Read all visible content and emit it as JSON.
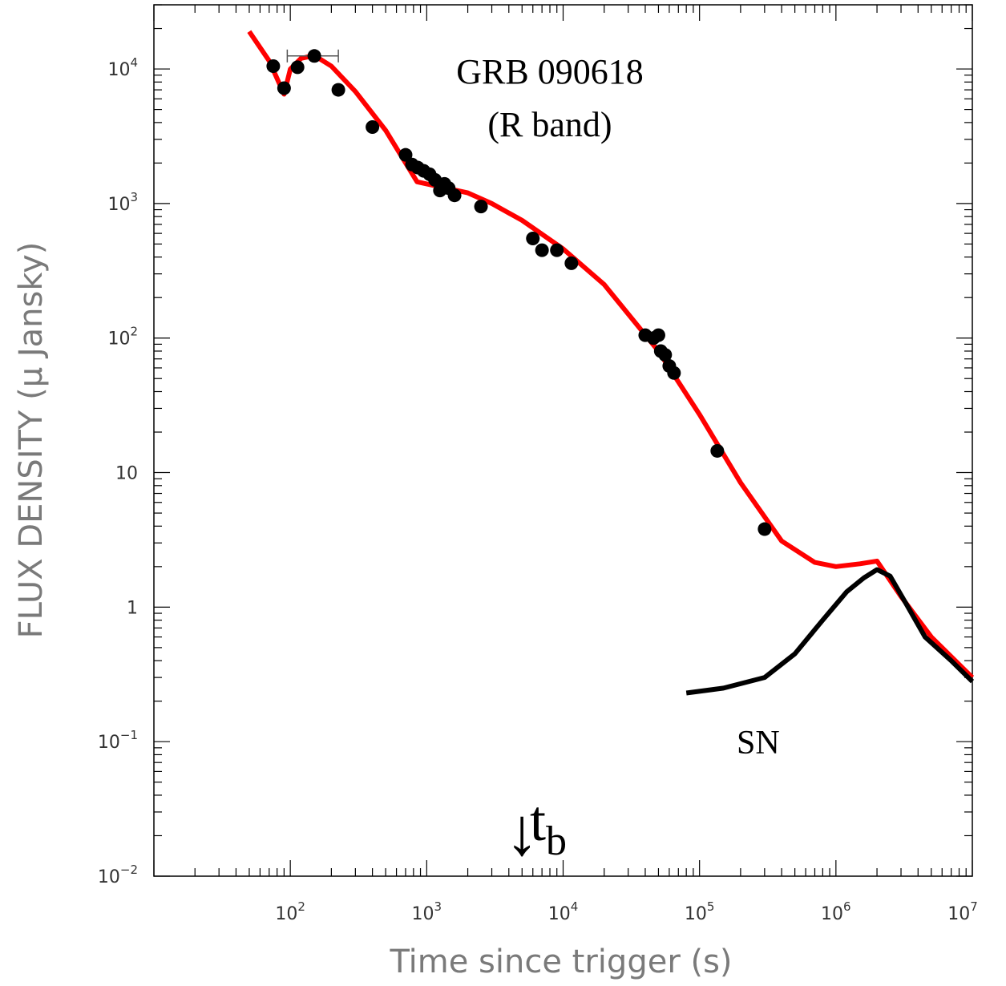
{
  "chart_data": {
    "type": "scatter",
    "title": "GRB 090618",
    "subtitle": "(R band)",
    "xlabel": "Time since trigger (s)",
    "ylabel": "FLUX DENSITY (μ Jansky)",
    "xscale": "log",
    "yscale": "log",
    "xlim": [
      10,
      10000000
    ],
    "ylim": [
      0.01,
      30000
    ],
    "grid": false,
    "x_tick_labels": [
      {
        "base": "10",
        "exp": "2",
        "value": 100
      },
      {
        "base": "10",
        "exp": "3",
        "value": 1000
      },
      {
        "base": "10",
        "exp": "4",
        "value": 10000
      },
      {
        "base": "10",
        "exp": "5",
        "value": 100000
      },
      {
        "base": "10",
        "exp": "6",
        "value": 1000000
      },
      {
        "base": "10",
        "exp": "7",
        "value": 10000000
      }
    ],
    "y_tick_labels": [
      {
        "base": "10",
        "exp": "−2",
        "value": 0.01
      },
      {
        "base": "10",
        "exp": "−1",
        "value": 0.1
      },
      {
        "base": "1",
        "exp": "",
        "value": 1
      },
      {
        "base": "10",
        "exp": "",
        "value": 10
      },
      {
        "base": "10",
        "exp": "2",
        "value": 100
      },
      {
        "base": "10",
        "exp": "3",
        "value": 1000
      },
      {
        "base": "10",
        "exp": "4",
        "value": 10000
      }
    ],
    "series": [
      {
        "kind": "points",
        "color": "#000000",
        "points": [
          [
            75,
            10500
          ],
          [
            90,
            7200
          ],
          [
            113,
            10300
          ],
          [
            150,
            12500
          ],
          [
            225,
            7000
          ],
          [
            400,
            3700
          ],
          [
            700,
            2300
          ],
          [
            780,
            1950
          ],
          [
            860,
            1850
          ],
          [
            950,
            1750
          ],
          [
            1050,
            1650
          ],
          [
            1150,
            1500
          ],
          [
            1250,
            1250
          ],
          [
            1350,
            1400
          ],
          [
            1450,
            1300
          ],
          [
            1600,
            1150
          ],
          [
            2500,
            950
          ],
          [
            6000,
            550
          ],
          [
            7000,
            450
          ],
          [
            9000,
            450
          ],
          [
            11500,
            360
          ],
          [
            40000,
            105
          ],
          [
            46000,
            100
          ],
          [
            50000,
            105
          ],
          [
            52000,
            80
          ],
          [
            56000,
            75
          ],
          [
            60000,
            62
          ],
          [
            65000,
            55
          ],
          [
            135000,
            14.5
          ],
          [
            300000,
            3.8
          ]
        ],
        "xerr": [
          {
            "x": 150,
            "y": 12500,
            "lo": 95,
            "hi": 225
          }
        ]
      },
      {
        "kind": "line",
        "color": "#ff0000",
        "points": [
          [
            50,
            19000
          ],
          [
            70,
            11500
          ],
          [
            90,
            6500
          ],
          [
            100,
            10000
          ],
          [
            120,
            12000
          ],
          [
            150,
            12600
          ],
          [
            200,
            10500
          ],
          [
            300,
            6800
          ],
          [
            500,
            3500
          ],
          [
            850,
            1450
          ],
          [
            1000,
            1400
          ],
          [
            2000,
            1200
          ],
          [
            3000,
            1000
          ],
          [
            5000,
            750
          ],
          [
            10000,
            460
          ],
          [
            20000,
            250
          ],
          [
            50000,
            80
          ],
          [
            100000,
            27
          ],
          [
            200000,
            8.4
          ],
          [
            400000,
            3.1
          ],
          [
            700000,
            2.15
          ],
          [
            1000000,
            2.0
          ],
          [
            1500000,
            2.1
          ],
          [
            2000000,
            2.2
          ],
          [
            3000000,
            1.2
          ],
          [
            5000000,
            0.6
          ],
          [
            10000000,
            0.3
          ]
        ]
      },
      {
        "kind": "line",
        "color": "#000000",
        "points": [
          [
            80000,
            0.23
          ],
          [
            150000,
            0.25
          ],
          [
            300000,
            0.3
          ],
          [
            500000,
            0.45
          ],
          [
            800000,
            0.8
          ],
          [
            1200000,
            1.3
          ],
          [
            1600000,
            1.65
          ],
          [
            2000000,
            1.9
          ],
          [
            2500000,
            1.7
          ],
          [
            3200000,
            1.1
          ],
          [
            4500000,
            0.6
          ],
          [
            7000000,
            0.4
          ],
          [
            10000000,
            0.28
          ]
        ]
      }
    ],
    "annotations": [
      {
        "text": "SN",
        "x": 200000,
        "y": 0.1
      },
      {
        "text": "↓",
        "x": 5000,
        "y": 0.02
      },
      {
        "text": "t",
        "sub": "b",
        "x": 8000,
        "y": 0.02
      }
    ]
  }
}
